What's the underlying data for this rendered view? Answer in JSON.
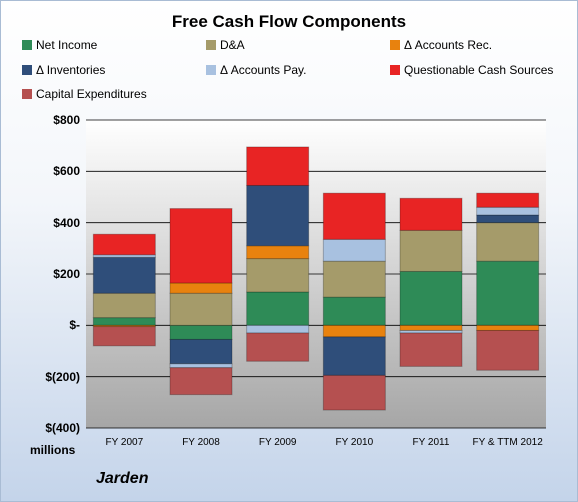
{
  "chart_data": {
    "type": "bar",
    "stacked": true,
    "title": "Free Cash Flow Components",
    "categories": [
      "FY 2007",
      "FY 2008",
      "FY 2009",
      "FY 2010",
      "FY 2011",
      "FY & TTM 2012"
    ],
    "series": [
      {
        "name": "Net Income",
        "color": "#2e8b57",
        "values": [
          30,
          -55,
          130,
          110,
          210,
          250
        ]
      },
      {
        "name": "D&A",
        "color": "#a59b6a",
        "values": [
          95,
          125,
          130,
          140,
          160,
          150
        ]
      },
      {
        "name": "Δ Accounts Rec.",
        "color": "#e8820e",
        "values": [
          -5,
          40,
          50,
          -45,
          -20,
          -20
        ]
      },
      {
        "name": "Δ Inventories",
        "color": "#2f4e7a",
        "values": [
          140,
          -95,
          235,
          -150,
          0,
          30
        ]
      },
      {
        "name": "Δ Accounts Pay.",
        "color": "#a8c1e0",
        "values": [
          10,
          -15,
          -30,
          85,
          -10,
          30
        ]
      },
      {
        "name": "Questionable Cash Sources",
        "color": "#e82424",
        "values": [
          80,
          290,
          150,
          180,
          125,
          55
        ]
      },
      {
        "name": "Capital Expenditures",
        "color": "#b55050",
        "values": [
          -75,
          -105,
          -110,
          -135,
          -130,
          -155
        ]
      }
    ],
    "ylim": [
      -400,
      800
    ],
    "yticks": [
      800,
      600,
      400,
      200,
      0,
      -200,
      -400
    ],
    "ytick_labels": [
      "$800",
      "$600",
      "$400",
      "$200",
      "$-",
      "$(200)",
      "$(400)"
    ],
    "ylabel": "millions",
    "grid": true,
    "legend": "top"
  },
  "company": "Jarden"
}
